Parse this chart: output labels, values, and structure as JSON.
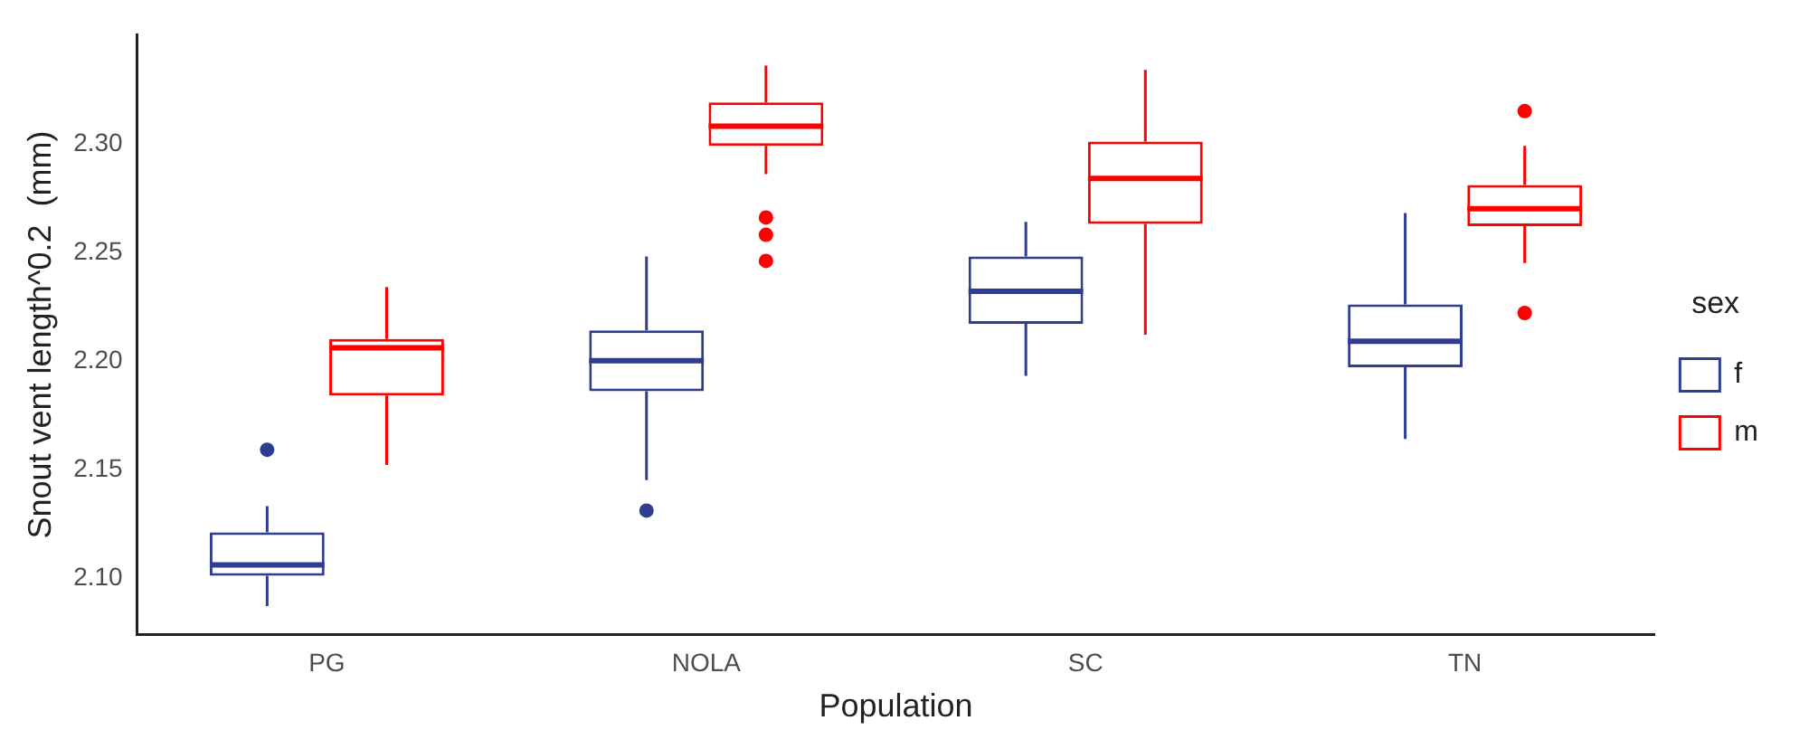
{
  "chart_data": {
    "type": "box",
    "xlabel": "Population",
    "ylabel": "Snout vent length^0.2  (mm)",
    "legend_title": "sex",
    "legend": "right",
    "grid": false,
    "categories": [
      "PG",
      "NOLA",
      "SC",
      "TN"
    ],
    "ylim": [
      2.074,
      2.35
    ],
    "yticks": [
      {
        "value": 2.1,
        "label": "2.10"
      },
      {
        "value": 2.15,
        "label": "2.15"
      },
      {
        "value": 2.2,
        "label": "2.20"
      },
      {
        "value": 2.25,
        "label": "2.25"
      },
      {
        "value": 2.3,
        "label": "2.30"
      }
    ],
    "series": [
      {
        "name": "f",
        "color": "#2e3d8f",
        "boxes": [
          {
            "low": 2.087,
            "q1": 2.101,
            "median": 2.106,
            "q3": 2.121,
            "high": 2.133,
            "outliers": [
              2.159
            ]
          },
          {
            "low": 2.145,
            "q1": 2.186,
            "median": 2.2,
            "q3": 2.214,
            "high": 2.248,
            "outliers": [
              2.131
            ]
          },
          {
            "low": 2.193,
            "q1": 2.217,
            "median": 2.232,
            "q3": 2.248,
            "high": 2.264
          },
          {
            "low": 2.164,
            "q1": 2.197,
            "median": 2.209,
            "q3": 2.226,
            "high": 2.268
          }
        ]
      },
      {
        "name": "m",
        "color": "#ff0000",
        "boxes": [
          {
            "low": 2.152,
            "q1": 2.184,
            "median": 2.206,
            "q3": 2.21,
            "high": 2.234
          },
          {
            "low": 2.286,
            "q1": 2.299,
            "median": 2.308,
            "q3": 2.319,
            "high": 2.336,
            "outliers": [
              2.266,
              2.258,
              2.246
            ]
          },
          {
            "low": 2.212,
            "q1": 2.263,
            "median": 2.284,
            "q3": 2.301,
            "high": 2.334
          },
          {
            "low": 2.245,
            "q1": 2.262,
            "median": 2.27,
            "q3": 2.281,
            "high": 2.299,
            "outliers": [
              2.315,
              2.222
            ]
          }
        ]
      }
    ]
  }
}
